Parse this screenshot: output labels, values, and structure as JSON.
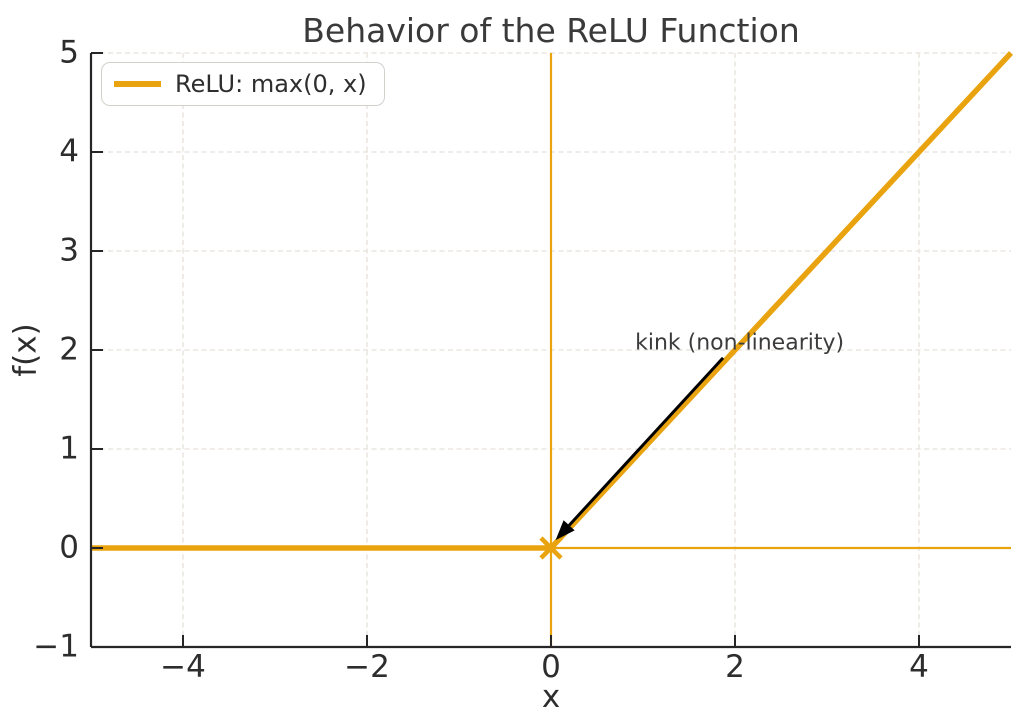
{
  "figure": {
    "background": "#ffffff"
  },
  "colors": {
    "accent_orange": "#e8a30e",
    "text_dark": "#2d2d2d",
    "title_gray": "#3a3a3a",
    "spine": "#262626",
    "grid": "#ebe6df",
    "arrow_black": "#000000",
    "legend_border": "#d3d1cc"
  },
  "chart_data": {
    "type": "line",
    "title": "Behavior of the ReLU Function",
    "xlabel": "x",
    "ylabel": "f(x)",
    "xlim": [
      -5,
      5
    ],
    "ylim": [
      -1,
      5
    ],
    "xticks": [
      -4,
      -2,
      0,
      2,
      4
    ],
    "xtick_labels": [
      "−4",
      "−2",
      "0",
      "2",
      "4"
    ],
    "yticks": [
      -1,
      0,
      1,
      2,
      3,
      4,
      5
    ],
    "ytick_labels": [
      "−1",
      "0",
      "1",
      "2",
      "3",
      "4",
      "5"
    ],
    "grid": {
      "visible": true,
      "linestyle": "dashed",
      "color": "#ebe6df"
    },
    "series": [
      {
        "name": "ReLU: max(0, x)",
        "color": "#e8a30e",
        "linewidth": 5.5,
        "points": [
          [
            -5,
            0
          ],
          [
            0,
            0
          ],
          [
            5,
            5
          ]
        ]
      }
    ],
    "reference_lines": [
      {
        "type": "vline",
        "x": 0,
        "color": "#e8a30e",
        "linewidth": 2.2
      },
      {
        "type": "hline",
        "y": 0,
        "color": "#e8a30e",
        "linewidth": 2.2
      }
    ],
    "marker": {
      "x": 0,
      "y": 0,
      "shape": "x",
      "color": "#e8a30e"
    },
    "annotation": {
      "text": "kink (non-linearity)",
      "text_x": 2.05,
      "text_y": 2.07,
      "arrow_tail": [
        1.87,
        1.92
      ],
      "arrow_tip": [
        0.05,
        0.08
      ],
      "arrow_color": "#000000"
    },
    "legend": {
      "location": "upper left",
      "entries": [
        {
          "label": "ReLU: max(0, x)",
          "color": "#e8a30e"
        }
      ]
    }
  }
}
